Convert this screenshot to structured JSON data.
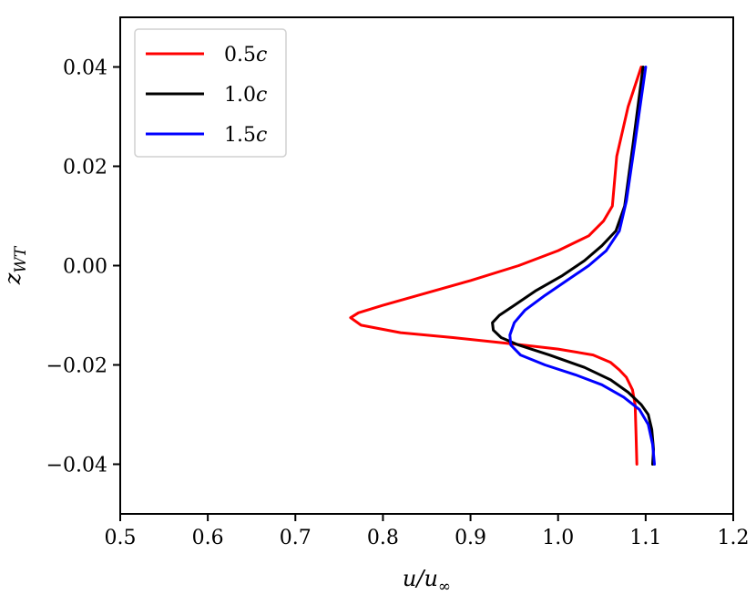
{
  "chart_data": {
    "type": "line",
    "xlabel": "u/u∞",
    "ylabel": "z_WT",
    "xlim": [
      0.5,
      1.2
    ],
    "ylim": [
      -0.05,
      0.05
    ],
    "xticks": [
      "0.5",
      "0.6",
      "0.7",
      "0.8",
      "0.9",
      "1.0",
      "1.1",
      "1.2"
    ],
    "yticks": [
      "0.04",
      "0.02",
      "0.00",
      "−0.02",
      "−0.04"
    ],
    "grid": false,
    "legend_position": "upper-left",
    "series": [
      {
        "name": "0.5c",
        "color": "#ff0000",
        "points": [
          [
            1.095,
            0.04
          ],
          [
            1.08,
            0.032
          ],
          [
            1.067,
            0.022
          ],
          [
            1.062,
            0.012
          ],
          [
            1.052,
            0.009
          ],
          [
            1.035,
            0.006
          ],
          [
            1.0,
            0.003
          ],
          [
            0.955,
            0.0
          ],
          [
            0.9,
            -0.003
          ],
          [
            0.84,
            -0.006
          ],
          [
            0.8,
            -0.008
          ],
          [
            0.772,
            -0.0095
          ],
          [
            0.763,
            -0.0105
          ],
          [
            0.775,
            -0.012
          ],
          [
            0.82,
            -0.0135
          ],
          [
            0.88,
            -0.0145
          ],
          [
            0.95,
            -0.0158
          ],
          [
            1.0,
            -0.0168
          ],
          [
            1.04,
            -0.018
          ],
          [
            1.06,
            -0.0195
          ],
          [
            1.07,
            -0.021
          ],
          [
            1.078,
            -0.0225
          ],
          [
            1.085,
            -0.025
          ],
          [
            1.088,
            -0.028
          ],
          [
            1.089,
            -0.034
          ],
          [
            1.09,
            -0.04
          ]
        ]
      },
      {
        "name": "1.0c",
        "color": "#000000",
        "points": [
          [
            1.097,
            0.04
          ],
          [
            1.086,
            0.025
          ],
          [
            1.076,
            0.012
          ],
          [
            1.066,
            0.007
          ],
          [
            1.05,
            0.004
          ],
          [
            1.03,
            0.001
          ],
          [
            1.005,
            -0.002
          ],
          [
            0.975,
            -0.005
          ],
          [
            0.95,
            -0.008
          ],
          [
            0.933,
            -0.01
          ],
          [
            0.925,
            -0.0115
          ],
          [
            0.926,
            -0.013
          ],
          [
            0.935,
            -0.0145
          ],
          [
            0.955,
            -0.016
          ],
          [
            0.99,
            -0.018
          ],
          [
            1.03,
            -0.0205
          ],
          [
            1.06,
            -0.023
          ],
          [
            1.08,
            -0.0255
          ],
          [
            1.095,
            -0.028
          ],
          [
            1.103,
            -0.03
          ],
          [
            1.107,
            -0.033
          ],
          [
            1.109,
            -0.037
          ],
          [
            1.108,
            -0.04
          ]
        ]
      },
      {
        "name": "1.5c",
        "color": "#0000ff",
        "points": [
          [
            1.1,
            0.04
          ],
          [
            1.088,
            0.025
          ],
          [
            1.078,
            0.013
          ],
          [
            1.07,
            0.007
          ],
          [
            1.055,
            0.003
          ],
          [
            1.035,
            0.0
          ],
          [
            1.01,
            -0.003
          ],
          [
            0.985,
            -0.006
          ],
          [
            0.962,
            -0.009
          ],
          [
            0.95,
            -0.0115
          ],
          [
            0.945,
            -0.014
          ],
          [
            0.946,
            -0.016
          ],
          [
            0.957,
            -0.018
          ],
          [
            0.985,
            -0.02
          ],
          [
            1.02,
            -0.022
          ],
          [
            1.05,
            -0.024
          ],
          [
            1.075,
            -0.0265
          ],
          [
            1.093,
            -0.029
          ],
          [
            1.103,
            -0.032
          ],
          [
            1.108,
            -0.036
          ],
          [
            1.11,
            -0.04
          ]
        ]
      }
    ]
  }
}
